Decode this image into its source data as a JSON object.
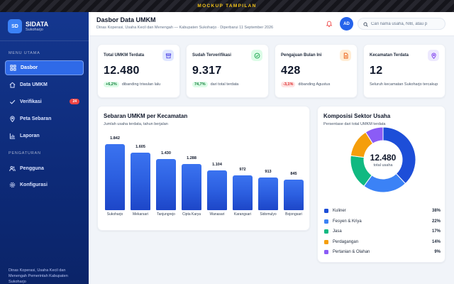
{
  "banner": "MOCKUP TAMPILAN",
  "brand": {
    "logo": "SD",
    "title": "SIDATA",
    "subtitle": "Sukoharjo"
  },
  "sidebar": {
    "main_label": "MENU UTAMA",
    "main_items": [
      {
        "label": "Dasbor",
        "icon": "grid-icon",
        "active": true
      },
      {
        "label": "Data UMKM",
        "icon": "home-icon"
      },
      {
        "label": "Verifikasi",
        "icon": "check-icon",
        "badge": "24"
      },
      {
        "label": "Peta Sebaran",
        "icon": "map-pin-icon"
      },
      {
        "label": "Laporan",
        "icon": "bar-chart-icon"
      }
    ],
    "settings_label": "PENGATURAN",
    "settings_items": [
      {
        "label": "Pengguna",
        "icon": "users-icon"
      },
      {
        "label": "Konfigurasi",
        "icon": "gear-icon"
      }
    ],
    "footer": "Dinas Koperasi, Usaha Kecil dan Menengah Pemerintah Kabupaten Sukoharjo"
  },
  "header": {
    "title": "Dasbor Data UMKM",
    "subtitle": "Dinas Koperasi, Usaha Kecil dan Menengah — Kabupaten Sukoharjo · Diperbarui 11 September 2026",
    "avatar": "AD",
    "search_placeholder": "Cari nama usaha, NIB, atau p"
  },
  "stats": [
    {
      "label": "Total UMKM Terdata",
      "value": "12.480",
      "delta": "+6,2%",
      "delta_dir": "up",
      "note": "dibanding triwulan lalu",
      "icon": "box-icon",
      "icon_bg": "#e0e7ff",
      "icon_color": "#4f46e5"
    },
    {
      "label": "Sudah Terverifikasi",
      "value": "9.317",
      "delta": "74,7%",
      "delta_dir": "up",
      "note": "dari total terdata",
      "icon": "check-circle-icon",
      "icon_bg": "#dcfce7",
      "icon_color": "#16a34a"
    },
    {
      "label": "Pengajuan Bulan Ini",
      "value": "428",
      "delta": "-3,1%",
      "delta_dir": "down",
      "note": "dibanding Agustus",
      "icon": "document-icon",
      "icon_bg": "#ffedd5",
      "icon_color": "#ea580c"
    },
    {
      "label": "Kecamatan Terdata",
      "value": "12",
      "delta": "",
      "delta_dir": "",
      "note": "Seluruh kecamatan Sukoharjo tercakup",
      "icon": "location-icon",
      "icon_bg": "#ede9fe",
      "icon_color": "#7c3aed"
    }
  ],
  "bar_chart": {
    "title": "Sebaran UMKM per Kecamatan",
    "subtitle": "Jumlah usaha terdata, tahun berjalan"
  },
  "donut_chart": {
    "title": "Komposisi Sektor Usaha",
    "subtitle": "Persentase dari total UMKM terdata",
    "center_value": "12.480",
    "center_label": "total usaha"
  },
  "chart_data": [
    {
      "type": "bar",
      "title": "Sebaran UMKM per Kecamatan",
      "subtitle": "Jumlah usaha terdata, tahun berjalan",
      "categories": [
        "Sukoharjo",
        "Mekarsari",
        "Tanjungrejo",
        "Cipta Karya",
        "Wanasari",
        "Karangsari",
        "Sidomulyo",
        "Bojongsari"
      ],
      "values": [
        1842,
        1605,
        1430,
        1288,
        1104,
        972,
        913,
        845
      ],
      "value_labels": [
        "1.842",
        "1.605",
        "1.430",
        "1.288",
        "1.104",
        "972",
        "913",
        "845"
      ],
      "color": "#2c5fe0",
      "grid": false
    },
    {
      "type": "pie",
      "title": "Komposisi Sektor Usaha",
      "subtitle": "Persentase dari total UMKM terdata",
      "donut": true,
      "labels": [
        "Kuliner",
        "Fesyen & Kriya",
        "Jasa",
        "Perdagangan",
        "Pertanian & Olahan"
      ],
      "values": [
        38,
        22,
        17,
        14,
        9
      ],
      "value_labels": [
        "38%",
        "22%",
        "17%",
        "14%",
        "9%"
      ],
      "colors": [
        "#1d4ed8",
        "#3b82f6",
        "#10b981",
        "#f59e0b",
        "#8b5cf6"
      ],
      "legend": "bottom"
    }
  ]
}
